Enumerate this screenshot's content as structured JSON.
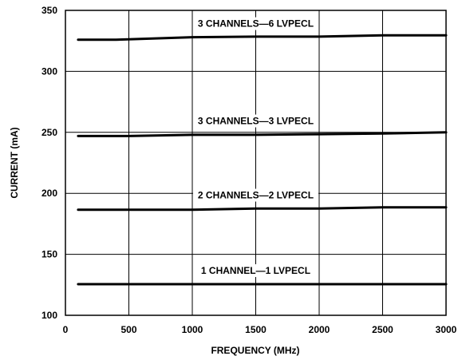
{
  "chart_data": {
    "type": "line",
    "title": "",
    "xlabel": "FREQUENCY (MHz)",
    "ylabel": "CURRENT (mA)",
    "xlim": [
      0,
      3000
    ],
    "ylim": [
      100,
      350
    ],
    "xticks": [
      0,
      500,
      1000,
      1500,
      2000,
      2500,
      3000
    ],
    "yticks": [
      100,
      150,
      200,
      250,
      300,
      350
    ],
    "grid": true,
    "legend": "none",
    "series": [
      {
        "name": "3 CHANNELS—6 LVPECL",
        "x": [
          100,
          400,
          1000,
          1500,
          2000,
          2500,
          3000
        ],
        "y": [
          326,
          326,
          328,
          328.5,
          328.5,
          329.5,
          329.5
        ]
      },
      {
        "name": "3 CHANNELS—3 LVPECL",
        "x": [
          100,
          500,
          1000,
          1500,
          2000,
          2500,
          3000
        ],
        "y": [
          247,
          247,
          248,
          248,
          248.5,
          249,
          250
        ]
      },
      {
        "name": "2 CHANNELS—2 LVPECL",
        "x": [
          100,
          500,
          1000,
          1500,
          2000,
          2500,
          3000
        ],
        "y": [
          186.5,
          186.5,
          186.5,
          187.5,
          187.5,
          188.5,
          188.5
        ]
      },
      {
        "name": "1 CHANNEL—1 LVPECL",
        "x": [
          100,
          500,
          1000,
          1500,
          2000,
          2500,
          3000
        ],
        "y": [
          125.5,
          125.5,
          125.5,
          125.5,
          125.5,
          125.5,
          125.5
        ]
      }
    ]
  }
}
